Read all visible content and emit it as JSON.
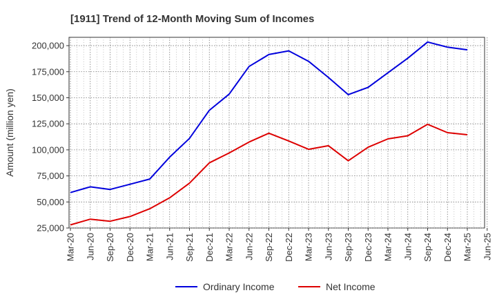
{
  "chart_data": {
    "type": "line",
    "title": "[1911]  Trend of 12-Month Moving Sum of Incomes",
    "xlabel": "",
    "ylabel": "Amount (million yen)",
    "ylim": [
      25000,
      208000
    ],
    "yticks": [
      25000,
      50000,
      75000,
      100000,
      125000,
      150000,
      175000,
      200000
    ],
    "ytick_labels": [
      "25,000",
      "50,000",
      "75,000",
      "100,000",
      "125,000",
      "150,000",
      "175,000",
      "200,000"
    ],
    "grid": true,
    "legend_position": "bottom-center",
    "categories": [
      "Mar-20",
      "Jun-20",
      "Sep-20",
      "Dec-20",
      "Mar-21",
      "Jun-21",
      "Sep-21",
      "Dec-21",
      "Mar-22",
      "Jun-22",
      "Sep-22",
      "Dec-22",
      "Mar-23",
      "Jun-23",
      "Sep-23",
      "Dec-23",
      "Mar-24",
      "Jun-24",
      "Sep-24",
      "Dec-24",
      "Mar-25",
      "Jun-25"
    ],
    "series": [
      {
        "name": "Ordinary Income",
        "color": "#0000dd",
        "values": [
          59000,
          64500,
          62000,
          67000,
          72000,
          93000,
          111000,
          138000,
          153500,
          180000,
          191500,
          195000,
          185000,
          169500,
          153000,
          160000,
          174000,
          188000,
          203500,
          198500,
          196000,
          null
        ]
      },
      {
        "name": "Net Income",
        "color": "#dd0000",
        "values": [
          28000,
          33500,
          31500,
          36000,
          43500,
          54000,
          68000,
          87500,
          97000,
          107500,
          116000,
          108500,
          100500,
          104000,
          89500,
          102500,
          110500,
          113500,
          124500,
          116500,
          114500,
          null
        ]
      }
    ]
  }
}
